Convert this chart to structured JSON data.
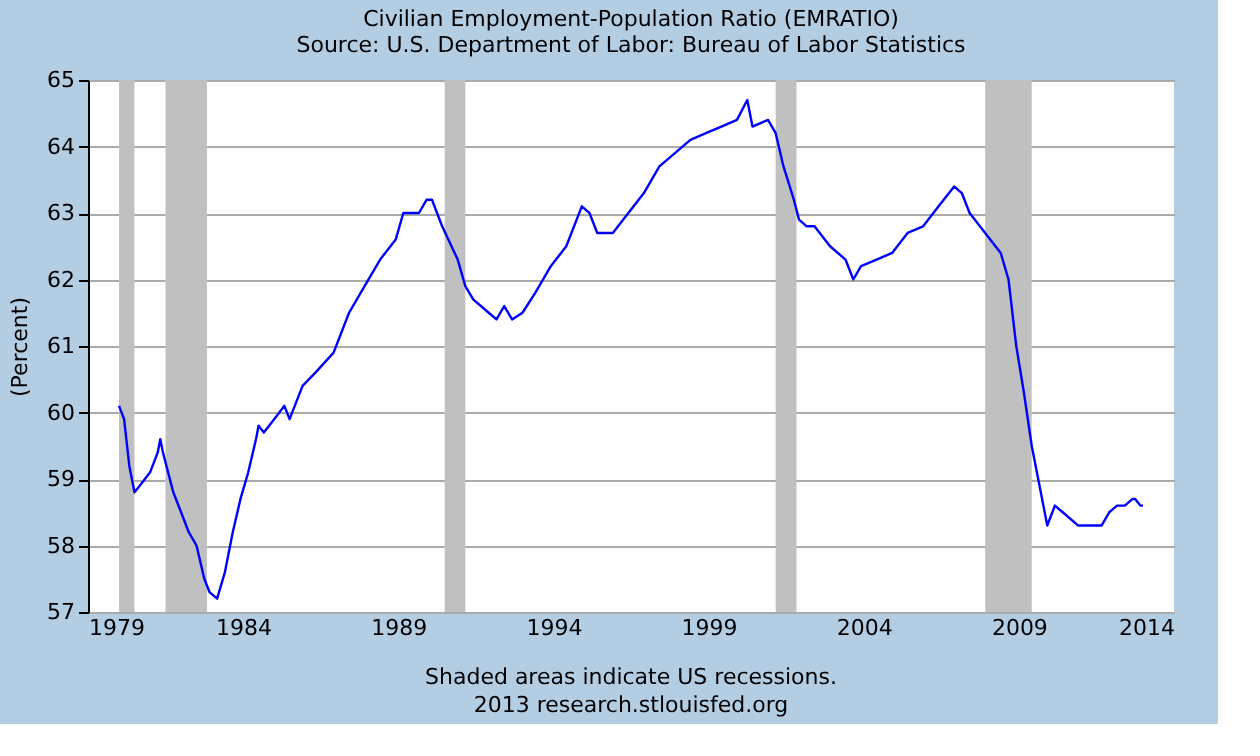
{
  "chart_data": {
    "type": "line",
    "title": "Civilian Employment-Population Ratio (EMRATIO)",
    "subtitle": "Source: U.S. Department of Labor: Bureau of Labor Statistics",
    "ylabel": "(Percent)",
    "x": [
      "1980-01",
      "1980-03",
      "1980-05",
      "1980-07",
      "1980-09",
      "1981-01",
      "1981-04",
      "1981-05",
      "1981-06",
      "1981-08",
      "1981-10",
      "1982-01",
      "1982-04",
      "1982-07",
      "1982-10",
      "1982-12",
      "1983-03",
      "1983-06",
      "1983-09",
      "1983-12",
      "1984-03",
      "1984-06",
      "1984-07",
      "1984-09",
      "1985-01",
      "1985-05",
      "1985-07",
      "1985-12",
      "1986-05",
      "1986-12",
      "1987-06",
      "1987-12",
      "1988-06",
      "1988-12",
      "1989-03",
      "1989-09",
      "1989-12",
      "1990-02",
      "1990-06",
      "1990-12",
      "1991-03",
      "1991-06",
      "1991-12",
      "1992-03",
      "1992-06",
      "1992-09",
      "1993-01",
      "1993-06",
      "1993-12",
      "1994-06",
      "1994-12",
      "1995-03",
      "1995-06",
      "1995-12",
      "1996-06",
      "1996-12",
      "1997-06",
      "1997-12",
      "1998-06",
      "1998-12",
      "1999-06",
      "1999-12",
      "2000-04",
      "2000-06",
      "2000-12",
      "2001-03",
      "2001-06",
      "2001-10",
      "2001-12",
      "2002-03",
      "2002-06",
      "2002-12",
      "2003-06",
      "2003-09",
      "2003-12",
      "2004-06",
      "2004-12",
      "2005-06",
      "2005-12",
      "2006-06",
      "2006-12",
      "2007-03",
      "2007-06",
      "2007-12",
      "2008-06",
      "2008-09",
      "2008-12",
      "2009-03",
      "2009-06",
      "2009-09",
      "2009-12",
      "2010-03",
      "2010-06",
      "2010-12",
      "2011-06",
      "2011-09",
      "2011-12",
      "2012-03",
      "2012-06",
      "2012-09",
      "2012-10",
      "2012-12",
      "2013-01"
    ],
    "series": [
      {
        "color": "#0000ff",
        "values": [
          60.1,
          59.9,
          59.2,
          58.8,
          58.9,
          59.1,
          59.4,
          59.6,
          59.4,
          59.1,
          58.8,
          58.5,
          58.2,
          58.0,
          57.5,
          57.3,
          57.2,
          57.6,
          58.2,
          58.7,
          59.1,
          59.6,
          59.8,
          59.7,
          59.9,
          60.1,
          59.9,
          60.4,
          60.6,
          60.9,
          61.5,
          61.9,
          62.3,
          62.6,
          63.0,
          63.0,
          63.2,
          63.2,
          62.8,
          62.3,
          61.9,
          61.7,
          61.5,
          61.4,
          61.6,
          61.4,
          61.5,
          61.8,
          62.2,
          62.5,
          63.1,
          63.0,
          62.7,
          62.7,
          63.0,
          63.3,
          63.7,
          63.9,
          64.1,
          64.2,
          64.3,
          64.4,
          64.7,
          64.3,
          64.4,
          64.2,
          63.7,
          63.2,
          62.9,
          62.8,
          62.8,
          62.5,
          62.3,
          62.0,
          62.2,
          62.3,
          62.4,
          62.7,
          62.8,
          63.1,
          63.4,
          63.3,
          63.0,
          62.7,
          62.4,
          62.0,
          61.0,
          60.3,
          59.5,
          58.9,
          58.3,
          58.6,
          58.5,
          58.3,
          58.3,
          58.3,
          58.5,
          58.6,
          58.6,
          58.7,
          58.7,
          58.6,
          58.6
        ]
      }
    ],
    "xlim": [
      "1979",
      "2014"
    ],
    "xticks": [
      "1979",
      "1984",
      "1989",
      "1994",
      "1999",
      "2004",
      "2009",
      "2014"
    ],
    "ylim": [
      57,
      65
    ],
    "yticks": [
      57,
      58,
      59,
      60,
      61,
      62,
      63,
      64,
      65
    ],
    "grid": "y",
    "line_style": "solid",
    "marker": "none",
    "bands": [
      {
        "axis": "x",
        "from": "1980-01",
        "to": "1980-07",
        "color": "#c0c0c0"
      },
      {
        "axis": "x",
        "from": "1981-07",
        "to": "1982-11",
        "color": "#c0c0c0"
      },
      {
        "axis": "x",
        "from": "1990-07",
        "to": "1991-03",
        "color": "#c0c0c0"
      },
      {
        "axis": "x",
        "from": "2001-03",
        "to": "2001-11",
        "color": "#c0c0c0"
      },
      {
        "axis": "x",
        "from": "2007-12",
        "to": "2009-06",
        "color": "#c0c0c0"
      }
    ],
    "annotations": [
      "Shaded areas indicate US recessions.",
      "2013 research.stlouisfed.org"
    ]
  }
}
